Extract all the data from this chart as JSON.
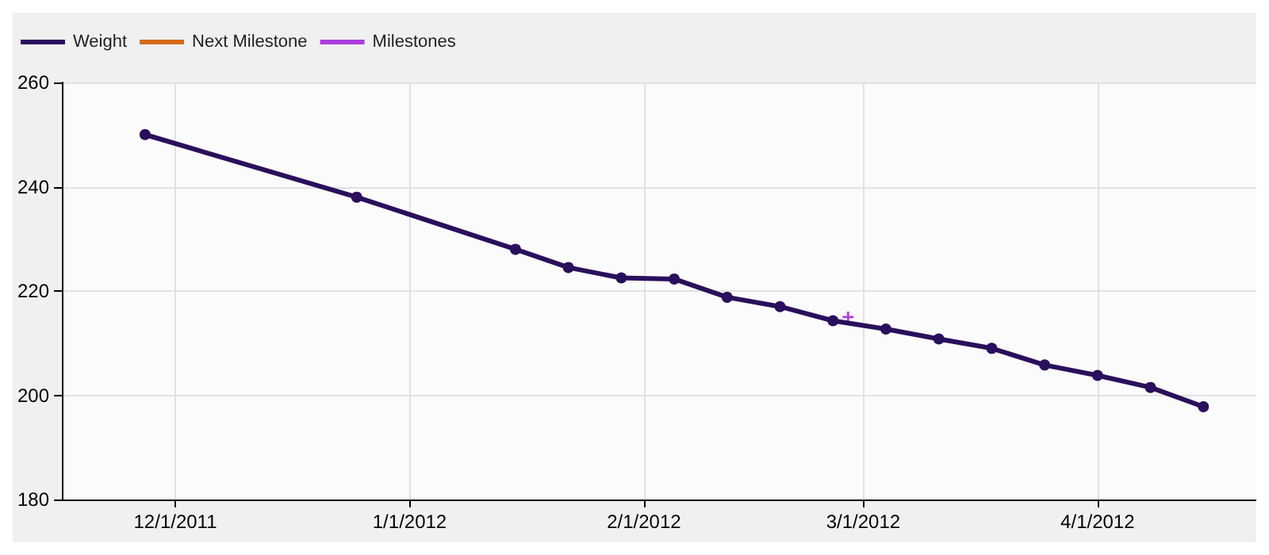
{
  "chart_data": {
    "type": "line",
    "xlim": [
      "2011-11-16",
      "2012-04-22"
    ],
    "xticks": [
      {
        "value": "2011-12-01",
        "label": "12/1/2011"
      },
      {
        "value": "2012-01-01",
        "label": "1/1/2012"
      },
      {
        "value": "2012-02-01",
        "label": "2/1/2012"
      },
      {
        "value": "2012-03-01",
        "label": "3/1/2012"
      },
      {
        "value": "2012-04-01",
        "label": "4/1/2012"
      }
    ],
    "ylim": [
      180,
      260
    ],
    "yticks": [
      180,
      200,
      220,
      240,
      260
    ],
    "grid": true,
    "legend": "top left",
    "line_style": "solid",
    "series": [
      {
        "name": "Weight",
        "color": "#2a0f5c",
        "marker": "circle",
        "x": [
          "2011-11-27",
          "2011-12-25",
          "2012-01-15",
          "2012-01-22",
          "2012-01-29",
          "2012-02-05",
          "2012-02-12",
          "2012-02-19",
          "2012-02-26",
          "2012-03-04",
          "2012-03-11",
          "2012-03-18",
          "2012-03-25",
          "2012-04-01",
          "2012-04-08",
          "2012-04-15"
        ],
        "values": [
          250,
          238,
          228,
          224.5,
          222.5,
          222.3,
          218.8,
          217,
          214.3,
          212.7,
          210.8,
          209,
          205.8,
          203.8,
          201.5,
          197.8
        ]
      },
      {
        "name": "Next Milestone",
        "color": "#d46b1a",
        "marker": "none"
      },
      {
        "name": "Milestones",
        "color": "#9b10d8",
        "type": "scatter",
        "marker": "cross",
        "x": [
          "2012-02-28"
        ],
        "values": [
          215
        ]
      }
    ]
  }
}
